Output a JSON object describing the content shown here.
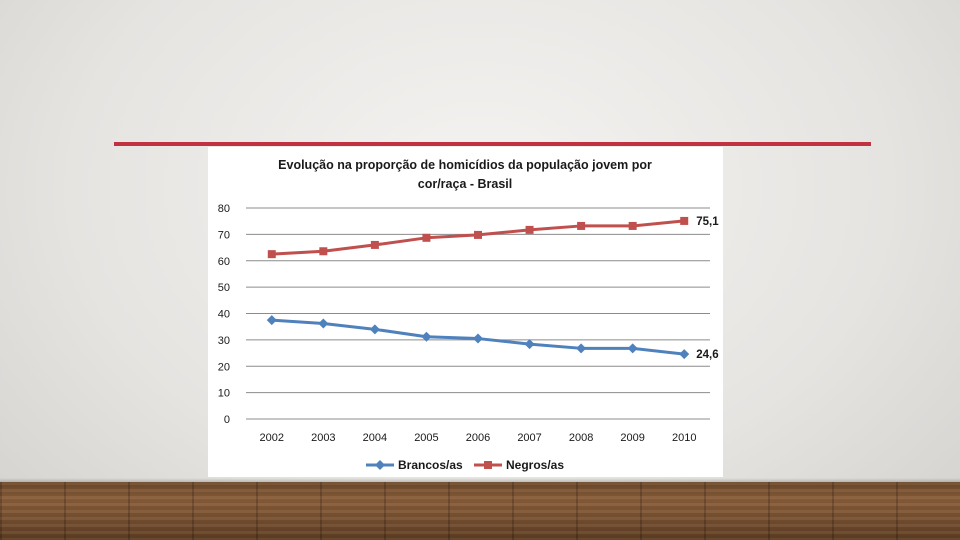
{
  "colors": {
    "accent_rule": "#c0323f",
    "series_brancos": "#4f81bd",
    "series_negros": "#c0504d",
    "gridline": "#8c8c8c"
  },
  "chart_data": {
    "type": "line",
    "title_line1": "Evolução na proporção de homicídios da população jovem por",
    "title_line2": "cor/raça  - Brasil",
    "categories": [
      "2002",
      "2003",
      "2004",
      "2005",
      "2006",
      "2007",
      "2008",
      "2009",
      "2010"
    ],
    "yticks": [
      "0",
      "10",
      "20",
      "30",
      "40",
      "50",
      "60",
      "70",
      "80"
    ],
    "ylim": [
      0,
      80
    ],
    "grid": true,
    "legend_position": "bottom",
    "series": [
      {
        "name": "Brancos/as",
        "marker": "diamond",
        "values": [
          37.5,
          36.2,
          34.0,
          31.2,
          30.5,
          28.4,
          26.8,
          26.8,
          24.6
        ],
        "end_label": "24,6"
      },
      {
        "name": "Negros/as",
        "marker": "square",
        "values": [
          62.5,
          63.6,
          66.0,
          68.7,
          69.8,
          71.7,
          73.2,
          73.2,
          75.1
        ],
        "end_label": "75,1"
      }
    ]
  }
}
